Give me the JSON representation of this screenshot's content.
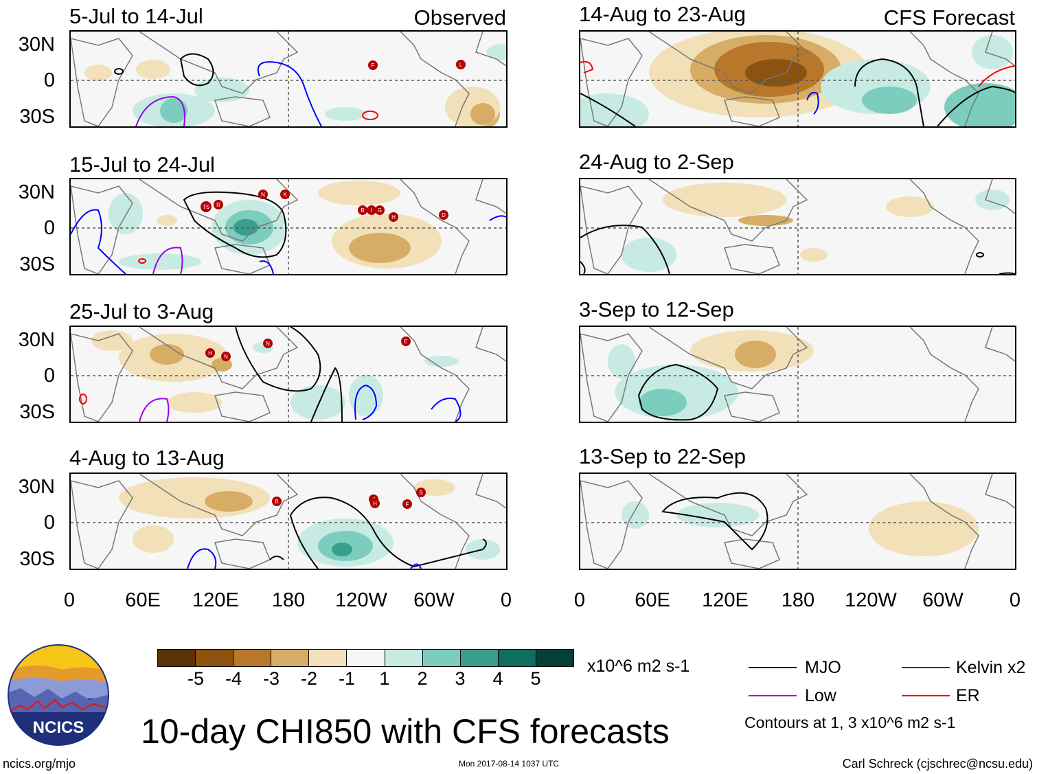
{
  "left_header": "Observed",
  "right_header": "CFS Forecast",
  "lat_labels": [
    "30N",
    "0",
    "30S"
  ],
  "lon_labels": [
    "0",
    "60E",
    "120E",
    "180",
    "120W",
    "60W",
    "0"
  ],
  "observed_panels": [
    {
      "title": "5-Jul to 14-Jul"
    },
    {
      "title": "15-Jul to 24-Jul"
    },
    {
      "title": "25-Jul to 3-Aug"
    },
    {
      "title": "4-Aug to 13-Aug"
    }
  ],
  "forecast_panels": [
    {
      "title": "14-Aug to 23-Aug"
    },
    {
      "title": "24-Aug to 2-Sep"
    },
    {
      "title": "3-Sep to 12-Sep"
    },
    {
      "title": "13-Sep to 22-Sep"
    }
  ],
  "colorbar": {
    "units": "x10^6 m2 s-1",
    "labels": [
      "-5",
      "-4",
      "-3",
      "-2",
      "-1",
      "1",
      "2",
      "3",
      "4",
      "5"
    ],
    "colors": [
      "#5a3206",
      "#8c520f",
      "#b8772b",
      "#d7ad66",
      "#f2e0b8",
      "#f6f6f6",
      "#c7ebe3",
      "#7dcdbf",
      "#3a9e8e",
      "#0f6d61",
      "#063f36"
    ]
  },
  "legend": {
    "items": [
      {
        "label": "MJO",
        "color": "#000000"
      },
      {
        "label": "Kelvin x2",
        "color": "#0000ff"
      },
      {
        "label": "Low",
        "color": "#9900ee"
      },
      {
        "label": "ER",
        "color": "#ee0000"
      }
    ],
    "contours_note": "Contours at 1, 3 x10^6 m2 s-1"
  },
  "logo_text": "NCICS",
  "main_title": "10-day CHI850 with CFS forecasts",
  "footer": {
    "left": "ncics.org/mjo",
    "center": "Mon 2017-08-14 1037 UTC",
    "right": "Carl Schreck (cjschrec@ncsu.edu)"
  },
  "storm_markers": {
    "panel1": [
      "F",
      "L"
    ],
    "panel2": [
      "TS",
      "R",
      "N",
      "K",
      "B",
      "I",
      "G",
      "H",
      "D"
    ],
    "panel3": [
      "H",
      "N",
      "N",
      "E"
    ],
    "panel4": [
      "B",
      "J",
      "H",
      "F",
      "B"
    ]
  }
}
